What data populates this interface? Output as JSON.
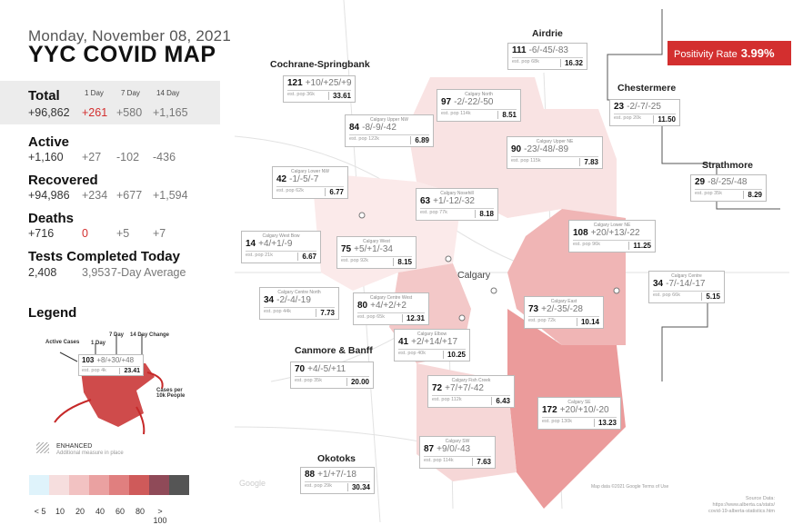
{
  "header": {
    "date": "Monday, November 08, 2021",
    "title": "YYC COVID MAP"
  },
  "columns": {
    "d1": "1 Day",
    "d7": "7 Day",
    "d14": "14 Day"
  },
  "stats": {
    "total": {
      "label": "Total",
      "value": "+96,862",
      "d1": "+261",
      "d7": "+580",
      "d14": "+1,165"
    },
    "active": {
      "label": "Active",
      "value": "+1,160",
      "d1": "+27",
      "d7": "-102",
      "d14": "-436"
    },
    "recovered": {
      "label": "Recovered",
      "value": "+94,986",
      "d1": "+234",
      "d7": "+677",
      "d14": "+1,594"
    },
    "deaths": {
      "label": "Deaths",
      "value": "+716",
      "d1": "0",
      "d7": "+5",
      "d14": "+7"
    },
    "tests": {
      "label": "Tests Completed Today",
      "value": "2,408",
      "avg": "3,953",
      "avg_label": "7-Day Average"
    }
  },
  "legend": {
    "title": "Legend",
    "active_cases": "Active Cases",
    "one_day": "1 Day",
    "seven_day": "7 Day",
    "fourteen_day": "14 Day Change",
    "sample_value": "103",
    "sample_changes": "+8/+30/+48",
    "sample_pop": "est. pop 4k",
    "sample_rate": "23.41",
    "cases_per": "Cases per 10k People",
    "enhanced": "ENHANCED",
    "enhanced_sub": "Additional measure in place",
    "scale_labels": [
      "< 5",
      "10",
      "20",
      "40",
      "60",
      "80",
      "> 100"
    ],
    "scale_colors": [
      "#dff3fb",
      "#f6dede",
      "#f2c2c2",
      "#eaa1a1",
      "#e07f7f",
      "#cf5a5a",
      "#8f4a58",
      "#555555"
    ]
  },
  "positivity": {
    "label": "Positivity Rate",
    "value": "3.99%"
  },
  "map_labels": {
    "calgary": "Calgary",
    "source_title": "Source Data:",
    "source_1": "https://www.alberta.ca/stats/",
    "source_2": "covid-19-alberta-statistics.htm",
    "terms": "Map data ©2021 Google   Terms of Use",
    "google": "Google"
  },
  "towns": {
    "airdrie": "Airdrie",
    "cochrane": "Cochrane-Springbank",
    "chestermere": "Chestermere",
    "strathmore": "Strathmore",
    "canmore": "Canmore & Banff",
    "okotoks": "Okotoks"
  },
  "areas": [
    {
      "key": "airdrie",
      "name": "",
      "active": "111",
      "changes": "-6/-45/-83",
      "pop": "est. pop 68k",
      "rate": "16.32"
    },
    {
      "key": "cochrane",
      "name": "",
      "active": "121",
      "changes": "+10/+25/+9",
      "pop": "est. pop 36k",
      "rate": "33.61"
    },
    {
      "key": "north",
      "name": "Calgary North",
      "active": "97",
      "changes": "-2/-22/-50",
      "pop": "est. pop 114k",
      "rate": "8.51"
    },
    {
      "key": "chestermere",
      "name": "",
      "active": "23",
      "changes": "-2/-7/-25",
      "pop": "est. pop 20k",
      "rate": "11.50"
    },
    {
      "key": "upper-nw",
      "name": "Calgary Upper NW",
      "active": "84",
      "changes": "-8/-9/-42",
      "pop": "est. pop 122k",
      "rate": "6.89"
    },
    {
      "key": "upper-ne",
      "name": "Calgary Upper NE",
      "active": "90",
      "changes": "-23/-48/-89",
      "pop": "est. pop 115k",
      "rate": "7.83"
    },
    {
      "key": "lower-nw",
      "name": "Calgary Lower NW",
      "active": "42",
      "changes": "-1/-5/-7",
      "pop": "est. pop 62k",
      "rate": "6.77"
    },
    {
      "key": "nosehill",
      "name": "Calgary Nosehill",
      "active": "63",
      "changes": "+1/-12/-32",
      "pop": "est. pop 77k",
      "rate": "8.18"
    },
    {
      "key": "strathmore",
      "name": "",
      "active": "29",
      "changes": "-8/-25/-48",
      "pop": "est. pop 35k",
      "rate": "8.29"
    },
    {
      "key": "west-bow",
      "name": "Calgary West Bow",
      "active": "14",
      "changes": "+4/+1/-9",
      "pop": "est. pop 21k",
      "rate": "6.67"
    },
    {
      "key": "west",
      "name": "Calgary West",
      "active": "75",
      "changes": "+5/+1/-34",
      "pop": "est. pop 92k",
      "rate": "8.15"
    },
    {
      "key": "lower-ne",
      "name": "Calgary Lower NE",
      "active": "108",
      "changes": "+20/+13/-22",
      "pop": "est. pop 96k",
      "rate": "11.25"
    },
    {
      "key": "centre-north",
      "name": "Calgary Centre North",
      "active": "34",
      "changes": "-2/-4/-19",
      "pop": "est. pop 44k",
      "rate": "7.73"
    },
    {
      "key": "centre-west",
      "name": "Calgary Centre West",
      "active": "80",
      "changes": "+4/+2/+2",
      "pop": "est. pop 65k",
      "rate": "12.31"
    },
    {
      "key": "east",
      "name": "Calgary East",
      "active": "73",
      "changes": "+2/-35/-28",
      "pop": "est. pop 72k",
      "rate": "10.14"
    },
    {
      "key": "centre",
      "name": "Calgary Centre",
      "active": "34",
      "changes": "-7/-14/-17",
      "pop": "est. pop 66k",
      "rate": "5.15"
    },
    {
      "key": "elbow",
      "name": "Calgary Elbow",
      "active": "41",
      "changes": "+2/+14/+17",
      "pop": "est. pop 40k",
      "rate": "10.25"
    },
    {
      "key": "canmore",
      "name": "",
      "active": "70",
      "changes": "+4/-5/+11",
      "pop": "est. pop 35k",
      "rate": "20.00"
    },
    {
      "key": "fish-creek",
      "name": "Calgary Fish Creek",
      "active": "72",
      "changes": "+7/+7/-42",
      "pop": "est. pop 112k",
      "rate": "6.43"
    },
    {
      "key": "se",
      "name": "Calgary SE",
      "active": "172",
      "changes": "+20/+10/-20",
      "pop": "est. pop 130k",
      "rate": "13.23"
    },
    {
      "key": "sw",
      "name": "Calgary SW",
      "active": "87",
      "changes": "+9/0/-43",
      "pop": "est. pop 114k",
      "rate": "7.63"
    },
    {
      "key": "okotoks",
      "name": "",
      "active": "88",
      "changes": "+1/+7/-18",
      "pop": "est. pop 29k",
      "rate": "30.34"
    }
  ]
}
